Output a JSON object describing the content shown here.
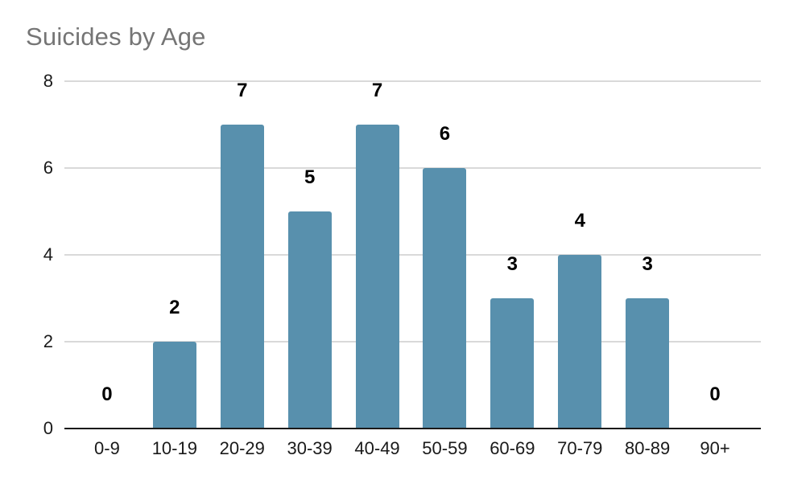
{
  "chart_data": {
    "type": "bar",
    "title": "Suicides by Age",
    "categories": [
      "0-9",
      "10-19",
      "20-29",
      "30-39",
      "40-49",
      "50-59",
      "60-69",
      "70-79",
      "80-89",
      "90+"
    ],
    "values": [
      0,
      2,
      7,
      5,
      7,
      6,
      3,
      4,
      3,
      0
    ],
    "xlabel": "",
    "ylabel": "",
    "y_ticks": [
      0,
      2,
      4,
      6,
      8
    ],
    "ylim": [
      0,
      8
    ],
    "grid": "horizontal",
    "legend": "none",
    "data_labels_shown": true,
    "colors": {
      "bar": "#5890ad",
      "gridline": "#d9d9d9",
      "axis_line": "#1a1a1a",
      "title": "#757575",
      "tick_label": "#1a1a1a",
      "data_label": "#000000",
      "background": "#ffffff"
    }
  }
}
